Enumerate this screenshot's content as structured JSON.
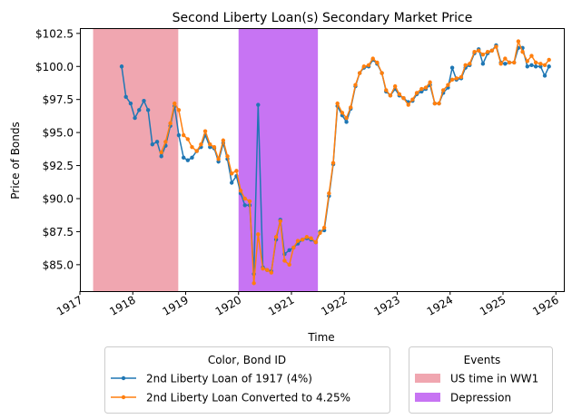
{
  "chart_data": {
    "type": "line",
    "title": "Second Liberty Loan(s) Secondary Market Price",
    "xlabel": "Time",
    "ylabel": "Price of Bonds",
    "xlim": [
      1917.0,
      1926.15
    ],
    "ylim": [
      83.0,
      102.9
    ],
    "x_ticks": [
      1917,
      1918,
      1919,
      1920,
      1921,
      1922,
      1923,
      1924,
      1925,
      1926
    ],
    "x_tick_labels": [
      "1917",
      "1918",
      "1919",
      "1920",
      "1921",
      "1922",
      "1923",
      "1924",
      "1925",
      "1926"
    ],
    "y_ticks": [
      85.0,
      87.5,
      90.0,
      92.5,
      95.0,
      97.5,
      100.0,
      102.5
    ],
    "y_tick_labels": [
      "$85.0",
      "$87.5",
      "$90.0",
      "$92.5",
      "$95.0",
      "$97.5",
      "$100.0",
      "$102.5"
    ],
    "grid": false,
    "series_legend_title": "Color, Bond ID",
    "events_legend_title": "Events",
    "legend_placement": "below chart",
    "events": [
      {
        "name": "US time in WW1",
        "start": 1917.25,
        "end": 1918.86,
        "color": "#f0a6b0"
      },
      {
        "name": "Depression",
        "start": 1920.0,
        "end": 1921.5,
        "color": "#c774f3"
      }
    ],
    "series": [
      {
        "name": "2nd Liberty Loan of 1917 (4%)",
        "color": "#1f77b4",
        "points": [
          [
            1917.79,
            100.0
          ],
          [
            1917.87,
            97.7
          ],
          [
            1917.96,
            97.2
          ],
          [
            1918.04,
            96.1
          ],
          [
            1918.12,
            96.7
          ],
          [
            1918.21,
            97.4
          ],
          [
            1918.29,
            96.7
          ],
          [
            1918.37,
            94.1
          ],
          [
            1918.46,
            94.3
          ],
          [
            1918.54,
            93.2
          ],
          [
            1918.62,
            94.0
          ],
          [
            1918.71,
            95.5
          ],
          [
            1918.79,
            97.0
          ],
          [
            1918.87,
            94.8
          ],
          [
            1918.96,
            93.1
          ],
          [
            1919.04,
            92.9
          ],
          [
            1919.12,
            93.1
          ],
          [
            1919.21,
            93.6
          ],
          [
            1919.29,
            93.9
          ],
          [
            1919.37,
            94.8
          ],
          [
            1919.46,
            93.9
          ],
          [
            1919.54,
            93.8
          ],
          [
            1919.62,
            92.8
          ],
          [
            1919.71,
            94.2
          ],
          [
            1919.79,
            93.0
          ],
          [
            1919.87,
            91.2
          ],
          [
            1919.96,
            91.7
          ],
          [
            1920.04,
            90.4
          ],
          [
            1920.12,
            89.5
          ],
          [
            1920.21,
            89.5
          ],
          [
            1920.29,
            84.3
          ],
          [
            1920.37,
            97.1
          ],
          [
            1920.46,
            84.8
          ],
          [
            1920.54,
            84.6
          ],
          [
            1920.62,
            84.5
          ],
          [
            1920.71,
            86.9
          ],
          [
            1920.79,
            88.4
          ],
          [
            1920.87,
            85.8
          ],
          [
            1920.96,
            86.1
          ],
          [
            1921.04,
            86.3
          ],
          [
            1921.12,
            86.6
          ],
          [
            1921.21,
            86.9
          ],
          [
            1921.29,
            87.0
          ],
          [
            1921.37,
            86.9
          ],
          [
            1921.46,
            86.7
          ],
          [
            1921.54,
            87.5
          ],
          [
            1921.62,
            87.6
          ],
          [
            1921.71,
            90.2
          ],
          [
            1921.79,
            92.6
          ],
          [
            1921.87,
            97.0
          ],
          [
            1921.96,
            96.3
          ],
          [
            1922.04,
            95.8
          ],
          [
            1922.12,
            96.8
          ],
          [
            1922.21,
            98.5
          ],
          [
            1922.29,
            99.5
          ],
          [
            1922.37,
            99.9
          ],
          [
            1922.46,
            100.0
          ],
          [
            1922.54,
            100.5
          ],
          [
            1922.62,
            100.2
          ],
          [
            1922.71,
            99.5
          ],
          [
            1922.79,
            98.1
          ],
          [
            1922.87,
            97.8
          ],
          [
            1922.96,
            98.3
          ],
          [
            1923.04,
            97.8
          ],
          [
            1923.12,
            97.6
          ],
          [
            1923.21,
            97.3
          ],
          [
            1923.29,
            97.4
          ],
          [
            1923.37,
            97.9
          ],
          [
            1923.46,
            98.1
          ],
          [
            1923.54,
            98.3
          ],
          [
            1923.62,
            98.6
          ],
          [
            1923.71,
            97.2
          ],
          [
            1923.79,
            97.2
          ],
          [
            1923.87,
            98.0
          ],
          [
            1923.96,
            98.4
          ],
          [
            1924.04,
            99.9
          ],
          [
            1924.12,
            99.0
          ],
          [
            1924.21,
            99.1
          ],
          [
            1924.29,
            99.9
          ],
          [
            1924.37,
            100.1
          ],
          [
            1924.46,
            101.0
          ],
          [
            1924.54,
            101.3
          ],
          [
            1924.62,
            100.2
          ],
          [
            1924.71,
            101.0
          ],
          [
            1924.79,
            101.2
          ],
          [
            1924.87,
            101.6
          ],
          [
            1924.96,
            100.3
          ],
          [
            1925.04,
            100.2
          ],
          [
            1925.12,
            100.3
          ],
          [
            1925.21,
            100.3
          ],
          [
            1925.29,
            101.4
          ],
          [
            1925.37,
            101.4
          ],
          [
            1925.46,
            100.0
          ],
          [
            1925.54,
            100.1
          ],
          [
            1925.62,
            100.0
          ],
          [
            1925.71,
            100.0
          ],
          [
            1925.79,
            99.3
          ],
          [
            1925.87,
            100.0
          ]
        ]
      },
      {
        "name": "2nd Liberty Loan Converted to 4.25%",
        "color": "#ff7f0e",
        "points": [
          [
            1918.54,
            93.5
          ],
          [
            1918.62,
            94.3
          ],
          [
            1918.71,
            95.7
          ],
          [
            1918.79,
            97.2
          ],
          [
            1918.87,
            96.7
          ],
          [
            1918.96,
            94.8
          ],
          [
            1919.04,
            94.5
          ],
          [
            1919.12,
            93.9
          ],
          [
            1919.21,
            93.6
          ],
          [
            1919.29,
            94.1
          ],
          [
            1919.37,
            95.1
          ],
          [
            1919.46,
            94.1
          ],
          [
            1919.54,
            93.9
          ],
          [
            1919.62,
            93.0
          ],
          [
            1919.71,
            94.4
          ],
          [
            1919.79,
            93.2
          ],
          [
            1919.87,
            91.9
          ],
          [
            1919.96,
            92.1
          ],
          [
            1920.04,
            90.6
          ],
          [
            1920.12,
            90.0
          ],
          [
            1920.21,
            89.8
          ],
          [
            1920.29,
            83.6
          ],
          [
            1920.37,
            87.3
          ],
          [
            1920.46,
            84.7
          ],
          [
            1920.54,
            84.6
          ],
          [
            1920.62,
            84.4
          ],
          [
            1920.71,
            87.1
          ],
          [
            1920.79,
            88.3
          ],
          [
            1920.87,
            85.3
          ],
          [
            1920.96,
            85.0
          ],
          [
            1921.04,
            86.3
          ],
          [
            1921.12,
            86.8
          ],
          [
            1921.21,
            86.9
          ],
          [
            1921.29,
            87.1
          ],
          [
            1921.37,
            87.0
          ],
          [
            1921.46,
            86.7
          ],
          [
            1921.54,
            87.4
          ],
          [
            1921.62,
            87.8
          ],
          [
            1921.71,
            90.4
          ],
          [
            1921.79,
            92.7
          ],
          [
            1921.87,
            97.2
          ],
          [
            1921.96,
            96.5
          ],
          [
            1922.04,
            96.1
          ],
          [
            1922.12,
            96.9
          ],
          [
            1922.21,
            98.6
          ],
          [
            1922.29,
            99.5
          ],
          [
            1922.37,
            100.0
          ],
          [
            1922.46,
            100.1
          ],
          [
            1922.54,
            100.6
          ],
          [
            1922.62,
            100.3
          ],
          [
            1922.71,
            99.5
          ],
          [
            1922.79,
            98.2
          ],
          [
            1922.87,
            97.8
          ],
          [
            1922.96,
            98.5
          ],
          [
            1923.04,
            97.9
          ],
          [
            1923.12,
            97.6
          ],
          [
            1923.21,
            97.1
          ],
          [
            1923.29,
            97.5
          ],
          [
            1923.37,
            98.0
          ],
          [
            1923.46,
            98.3
          ],
          [
            1923.54,
            98.4
          ],
          [
            1923.62,
            98.8
          ],
          [
            1923.71,
            97.2
          ],
          [
            1923.79,
            97.2
          ],
          [
            1923.87,
            98.2
          ],
          [
            1923.96,
            98.6
          ],
          [
            1924.04,
            99.0
          ],
          [
            1924.12,
            99.1
          ],
          [
            1924.21,
            99.2
          ],
          [
            1924.29,
            100.1
          ],
          [
            1924.37,
            100.2
          ],
          [
            1924.46,
            101.1
          ],
          [
            1924.54,
            101.2
          ],
          [
            1924.62,
            100.9
          ],
          [
            1924.71,
            101.1
          ],
          [
            1924.79,
            101.2
          ],
          [
            1924.87,
            101.5
          ],
          [
            1924.96,
            100.2
          ],
          [
            1925.04,
            100.6
          ],
          [
            1925.12,
            100.3
          ],
          [
            1925.21,
            100.3
          ],
          [
            1925.29,
            101.9
          ],
          [
            1925.37,
            101.1
          ],
          [
            1925.46,
            100.4
          ],
          [
            1925.54,
            100.8
          ],
          [
            1925.62,
            100.3
          ],
          [
            1925.71,
            100.2
          ],
          [
            1925.79,
            100.1
          ],
          [
            1925.87,
            100.5
          ]
        ]
      }
    ]
  }
}
